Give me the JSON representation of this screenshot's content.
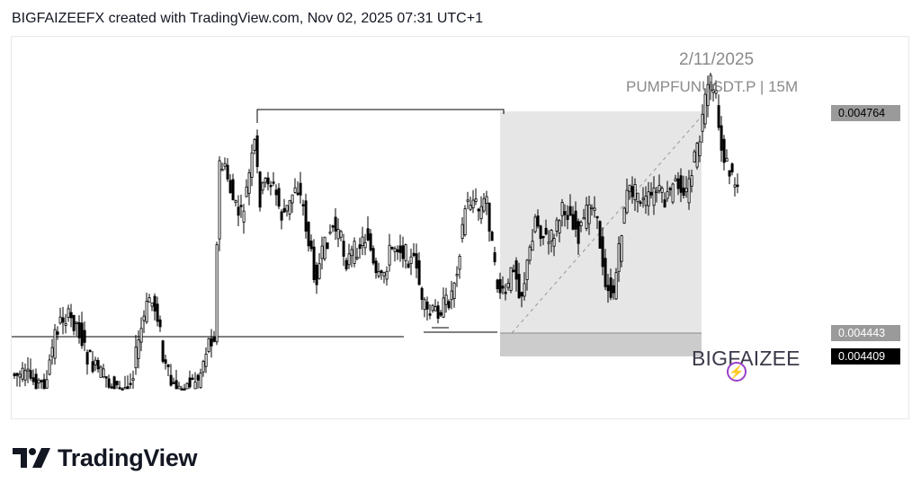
{
  "header": {
    "attribution": "BIGFAIZEEFX created with TradingView.com, Nov 02, 2025 07:31 UTC+1"
  },
  "chart": {
    "watermark_date": "2/11/2025",
    "watermark_symbol": "PUMPFUNUSDT.P | 15M",
    "brand_text": "BIGFAIZEE",
    "price_labels": {
      "upper": "0.004764",
      "entry": "0.004443",
      "stop": "0.004409"
    }
  },
  "footer": {
    "logo_text": "TradingView"
  },
  "colors": {
    "candle": "#000000",
    "target_zone": "#e6e6e6",
    "stop_zone": "#cccccc",
    "badge": "#9b3fc9"
  },
  "chart_data": {
    "type": "candlestick",
    "price_range": [
      0.00434,
      0.0049
    ],
    "annotations": {
      "resistance_level": 0.004764,
      "entry_level": 0.004443,
      "stop_level": 0.004409
    }
  }
}
